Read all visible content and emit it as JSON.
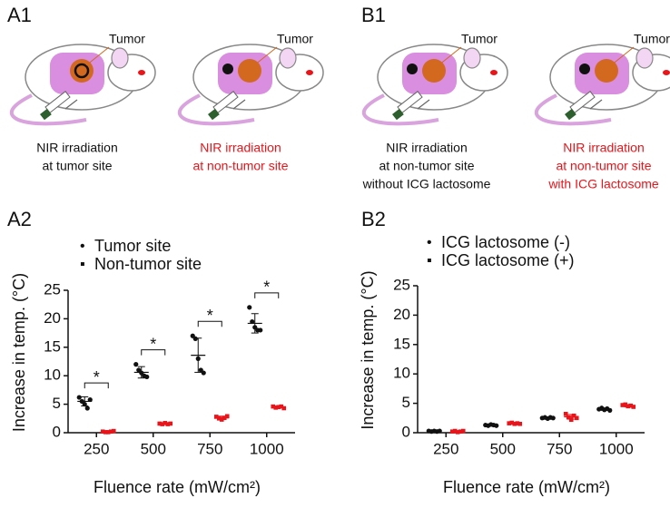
{
  "panel_labels": [
    "A1",
    "B1",
    "A2",
    "B2"
  ],
  "illustrations": [
    {
      "label": "Tumor",
      "caption_lines": [
        "NIR irradiation",
        "at tumor site"
      ],
      "caption_color": "#111111"
    },
    {
      "label": "Tumor",
      "caption_lines": [
        "NIR irradiation",
        "at non-tumor site"
      ],
      "caption_color": "#e8151b"
    },
    {
      "label": "Tumor",
      "caption_lines": [
        "NIR irradiation",
        "at non-tumor site",
        "without ICG lactosome"
      ],
      "caption_color": "#111111"
    },
    {
      "label": "Tumor",
      "caption_lines": [
        "NIR irradiation",
        "at non-tumor site",
        "with ICG lactosome"
      ],
      "caption_color": "#e8151b"
    }
  ],
  "chart_data": [
    {
      "type": "scatter",
      "y_label": "Increase in temp. (°C)",
      "x_label": "Fluence rate (mW/cm²)",
      "categories": [
        "250",
        "500",
        "750",
        "1000"
      ],
      "ylim": [
        0,
        25
      ],
      "yticks": [
        0,
        5,
        10,
        15,
        20,
        25
      ],
      "annotations": [
        "*",
        "*",
        "*",
        "*"
      ],
      "series": [
        {
          "name": "Tumor site",
          "color": "#111111",
          "values": [
            5.5,
            10.6,
            13.6,
            19.2
          ],
          "errors": [
            0.8,
            1.0,
            3.0,
            1.7
          ],
          "points": [
            [
              6.2,
              5.5,
              5.0,
              4.3,
              5.8
            ],
            [
              12.0,
              11.0,
              10.5,
              10.0,
              9.8
            ],
            [
              17.0,
              16.5,
              13.0,
              11.0,
              10.5
            ],
            [
              22.0,
              19.5,
              18.5,
              18.0,
              18.0
            ]
          ]
        },
        {
          "name": "Non-tumor site",
          "color": "#e8151b",
          "values": [
            0.2,
            1.6,
            2.6,
            4.5
          ],
          "errors": [
            0.1,
            0.1,
            0.3,
            0.1
          ],
          "points": [
            [
              0.2,
              0.1,
              0.1,
              0.2,
              0.3
            ],
            [
              1.6,
              1.5,
              1.7,
              1.5,
              1.6
            ],
            [
              2.8,
              2.5,
              2.3,
              2.6,
              2.9
            ],
            [
              4.6,
              4.4,
              4.5,
              4.6,
              4.3
            ]
          ]
        }
      ]
    },
    {
      "type": "scatter",
      "y_label": "Increase in temp. (°C)",
      "x_label": "Fluence rate (mW/cm²)",
      "categories": [
        "250",
        "500",
        "750",
        "1000"
      ],
      "ylim": [
        0,
        25
      ],
      "yticks": [
        0,
        5,
        10,
        15,
        20,
        25
      ],
      "series": [
        {
          "name": "ICG lactosome (-)",
          "color": "#111111",
          "values": [
            0.3,
            1.3,
            2.5,
            4.0
          ],
          "errors": [
            0.1,
            0.1,
            0.2,
            0.2
          ],
          "points": [
            [
              0.3,
              0.2,
              0.3,
              0.2,
              0.3
            ],
            [
              1.3,
              1.2,
              1.4,
              1.3,
              1.2
            ],
            [
              2.5,
              2.6,
              2.4,
              2.6,
              2.5
            ],
            [
              4.0,
              4.2,
              3.9,
              4.1,
              3.8
            ]
          ]
        },
        {
          "name": "ICG lactosome (+)",
          "color": "#e8151b",
          "values": [
            0.2,
            1.6,
            2.7,
            4.6
          ],
          "errors": [
            0.1,
            0.1,
            0.4,
            0.2
          ],
          "points": [
            [
              0.2,
              0.3,
              0.1,
              0.2,
              0.3
            ],
            [
              1.6,
              1.7,
              1.5,
              1.6,
              1.5
            ],
            [
              3.2,
              2.6,
              2.2,
              2.9,
              2.5
            ],
            [
              4.7,
              4.8,
              4.5,
              4.6,
              4.4
            ]
          ]
        }
      ]
    }
  ]
}
